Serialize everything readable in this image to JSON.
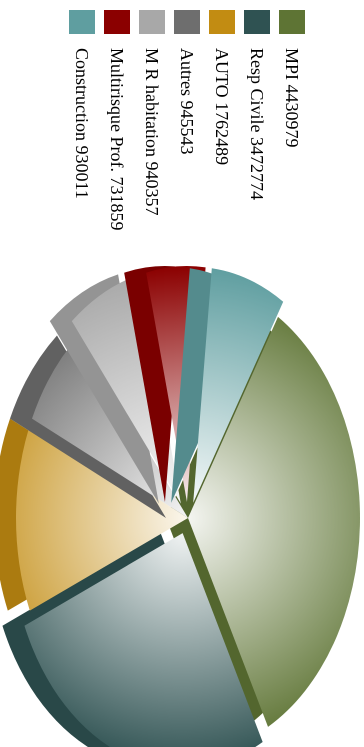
{
  "chart_data": {
    "type": "pie",
    "title": "",
    "style": "exploded 3D pie, rotated 90 degrees clockwise",
    "legend_position": "top",
    "slices": [
      {
        "label": "MPI 4430979",
        "name": "MPI",
        "value": 4430979,
        "color": "#5e7434",
        "exploded": false
      },
      {
        "label": "Resp Civile 3472774",
        "name": "Resp Civile",
        "value": 3472774,
        "color": "#2f5252",
        "exploded": true
      },
      {
        "label": "AUTO 1762489",
        "name": "AUTO",
        "value": 1762489,
        "color": "#c28c12",
        "exploded": false
      },
      {
        "label": "Autres 945543",
        "name": "Autres",
        "value": 945543,
        "color": "#6e6e6e",
        "exploded": false
      },
      {
        "label": "M R habitation 940357",
        "name": "M R habitation",
        "value": 940357,
        "color": "#a8a8a8",
        "exploded": true
      },
      {
        "label": "Multirisque Prof. 731859",
        "name": "Multirisque Prof.",
        "value": 731859,
        "color": "#8b0000",
        "exploded": true
      },
      {
        "label": "Construction 930011",
        "name": "Construction",
        "value": 930011,
        "color": "#5f9ea0",
        "exploded": true
      }
    ]
  }
}
